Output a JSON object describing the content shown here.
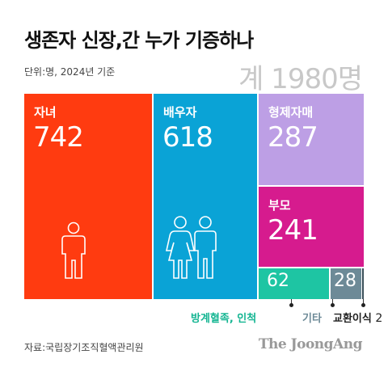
{
  "title": "생존자 신장,간 누가 기증하나",
  "unit_note": "단위:명, 2024년 기준",
  "total_label": "계 1980명",
  "source": "자료:국립장기조직혈액관리원",
  "logo": "The JoongAng",
  "chart_data": {
    "type": "treemap",
    "title": "생존자 신장,간 누가 기증하나",
    "total": 1980,
    "items": [
      {
        "label": "자녀",
        "value": 742,
        "color": "#ff3b10"
      },
      {
        "label": "배우자",
        "value": 618,
        "color": "#0aa3d6"
      },
      {
        "label": "형제자매",
        "value": 287,
        "color": "#bd9fe5"
      },
      {
        "label": "부모",
        "value": 241,
        "color": "#d61b8e"
      },
      {
        "label": "방계혈족, 인척",
        "value": 62,
        "color": "#1ec5a3"
      },
      {
        "label": "기타",
        "value": 28,
        "color": "#6d8a97"
      },
      {
        "label": "교환이식",
        "value": 2,
        "color": "#3a4f5a"
      }
    ]
  }
}
